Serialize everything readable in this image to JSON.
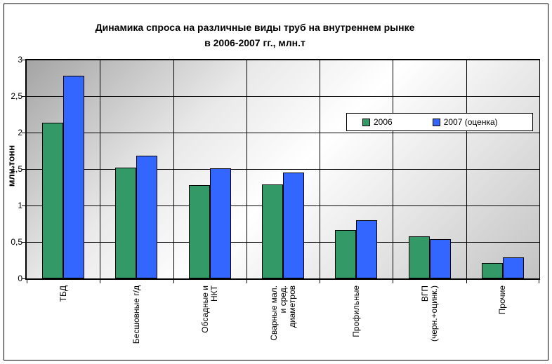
{
  "chart_data": {
    "type": "bar",
    "title_line1": "Динамика спроса на различные виды труб на внутреннем рынке",
    "title_line2": "в 2006-2007 гг., млн.т",
    "ylabel": "млн.тонн",
    "ylim": [
      0,
      3
    ],
    "grid": true,
    "legend_position": "inside-top-right",
    "y_ticks": [
      {
        "value": 0,
        "label": "0"
      },
      {
        "value": 0.5,
        "label": "0,5"
      },
      {
        "value": 1,
        "label": "1"
      },
      {
        "value": 1.5,
        "label": "1,5"
      },
      {
        "value": 2,
        "label": "2"
      },
      {
        "value": 2.5,
        "label": "2,5"
      },
      {
        "value": 3,
        "label": "3"
      }
    ],
    "categories": [
      "ТБД",
      "Бесшовные г/д",
      "Обсадные и\nНКТ",
      "Сварные мал.\nи сред.\nдиаметров",
      "Профильные",
      "ВГП\n(черн.+оцинк.)",
      "Прочие"
    ],
    "series": [
      {
        "name": "2006",
        "color": "#339966",
        "values": [
          2.13,
          1.52,
          1.28,
          1.29,
          0.66,
          0.58,
          0.21
        ]
      },
      {
        "name": "2007 (оценка)",
        "color": "#3366FF",
        "values": [
          2.78,
          1.68,
          1.51,
          1.45,
          0.8,
          0.54,
          0.29
        ]
      }
    ]
  }
}
